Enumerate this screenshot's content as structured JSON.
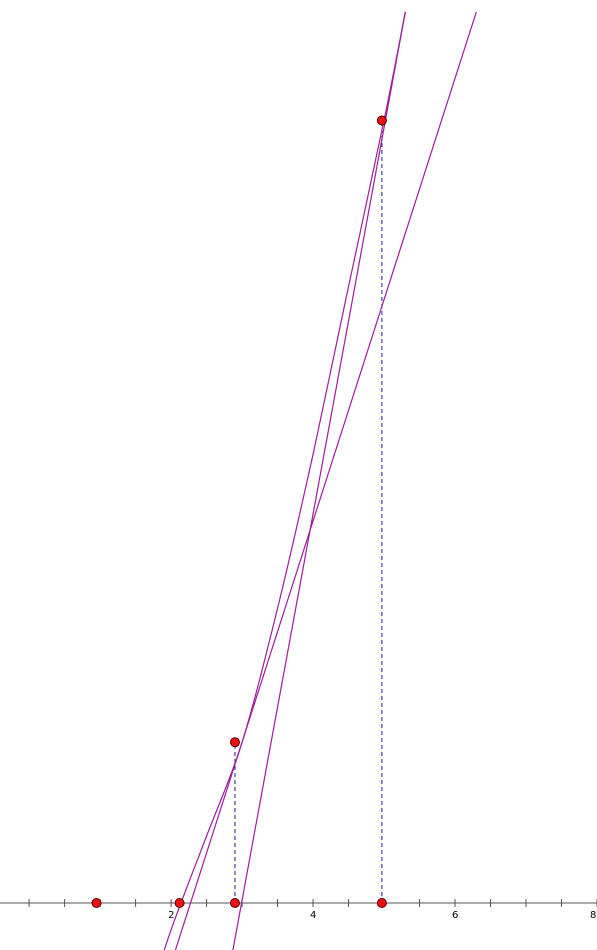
{
  "colors": {
    "background": "#ffffff",
    "axis": "#555555",
    "curve": "#9b1e9b",
    "guide": "#1f1f8f",
    "point_fill": "#ee1111",
    "point_stroke": "#550000"
  },
  "axis": {
    "tick_labels": [
      "2",
      "4",
      "6",
      "8"
    ],
    "tick_label_values": [
      2,
      4,
      6,
      8
    ],
    "minor_tick_values": [
      -1,
      -0.5,
      0,
      0.5,
      1,
      1.5,
      2,
      2.5,
      3,
      3.5,
      4,
      4.5,
      5,
      5.5,
      6,
      6.5,
      7,
      7.5,
      8
    ]
  },
  "figure": {
    "curve_points": [
      [
        1.7,
        -7.0
      ],
      [
        2.0,
        -2.0
      ],
      [
        2.5,
        5.0
      ],
      [
        3.0,
        12.0
      ],
      [
        3.5,
        22.0
      ],
      [
        4.0,
        33.5
      ],
      [
        4.5,
        46.0
      ],
      [
        5.0,
        58.4
      ],
      [
        5.3,
        66.5
      ]
    ],
    "tangent_lines": [
      {
        "x1": 1.85,
        "y1": -7.0,
        "x2": 6.3,
        "y2": 66.5
      },
      {
        "x1": 2.75,
        "y1": -7.0,
        "x2": 5.3,
        "y2": 66.5
      }
    ],
    "points": [
      {
        "x": 0.95,
        "y": 0
      },
      {
        "x": 2.12,
        "y": 0
      },
      {
        "x": 2.9,
        "y": 0
      },
      {
        "x": 4.97,
        "y": 0
      },
      {
        "x": 2.9,
        "y": 12.0
      },
      {
        "x": 4.97,
        "y": 58.4
      }
    ],
    "guides": [
      {
        "x": 2.9,
        "y_from": 0,
        "y_to": 12.0
      },
      {
        "x": 4.97,
        "y_from": 0,
        "y_to": 58.4
      }
    ]
  }
}
